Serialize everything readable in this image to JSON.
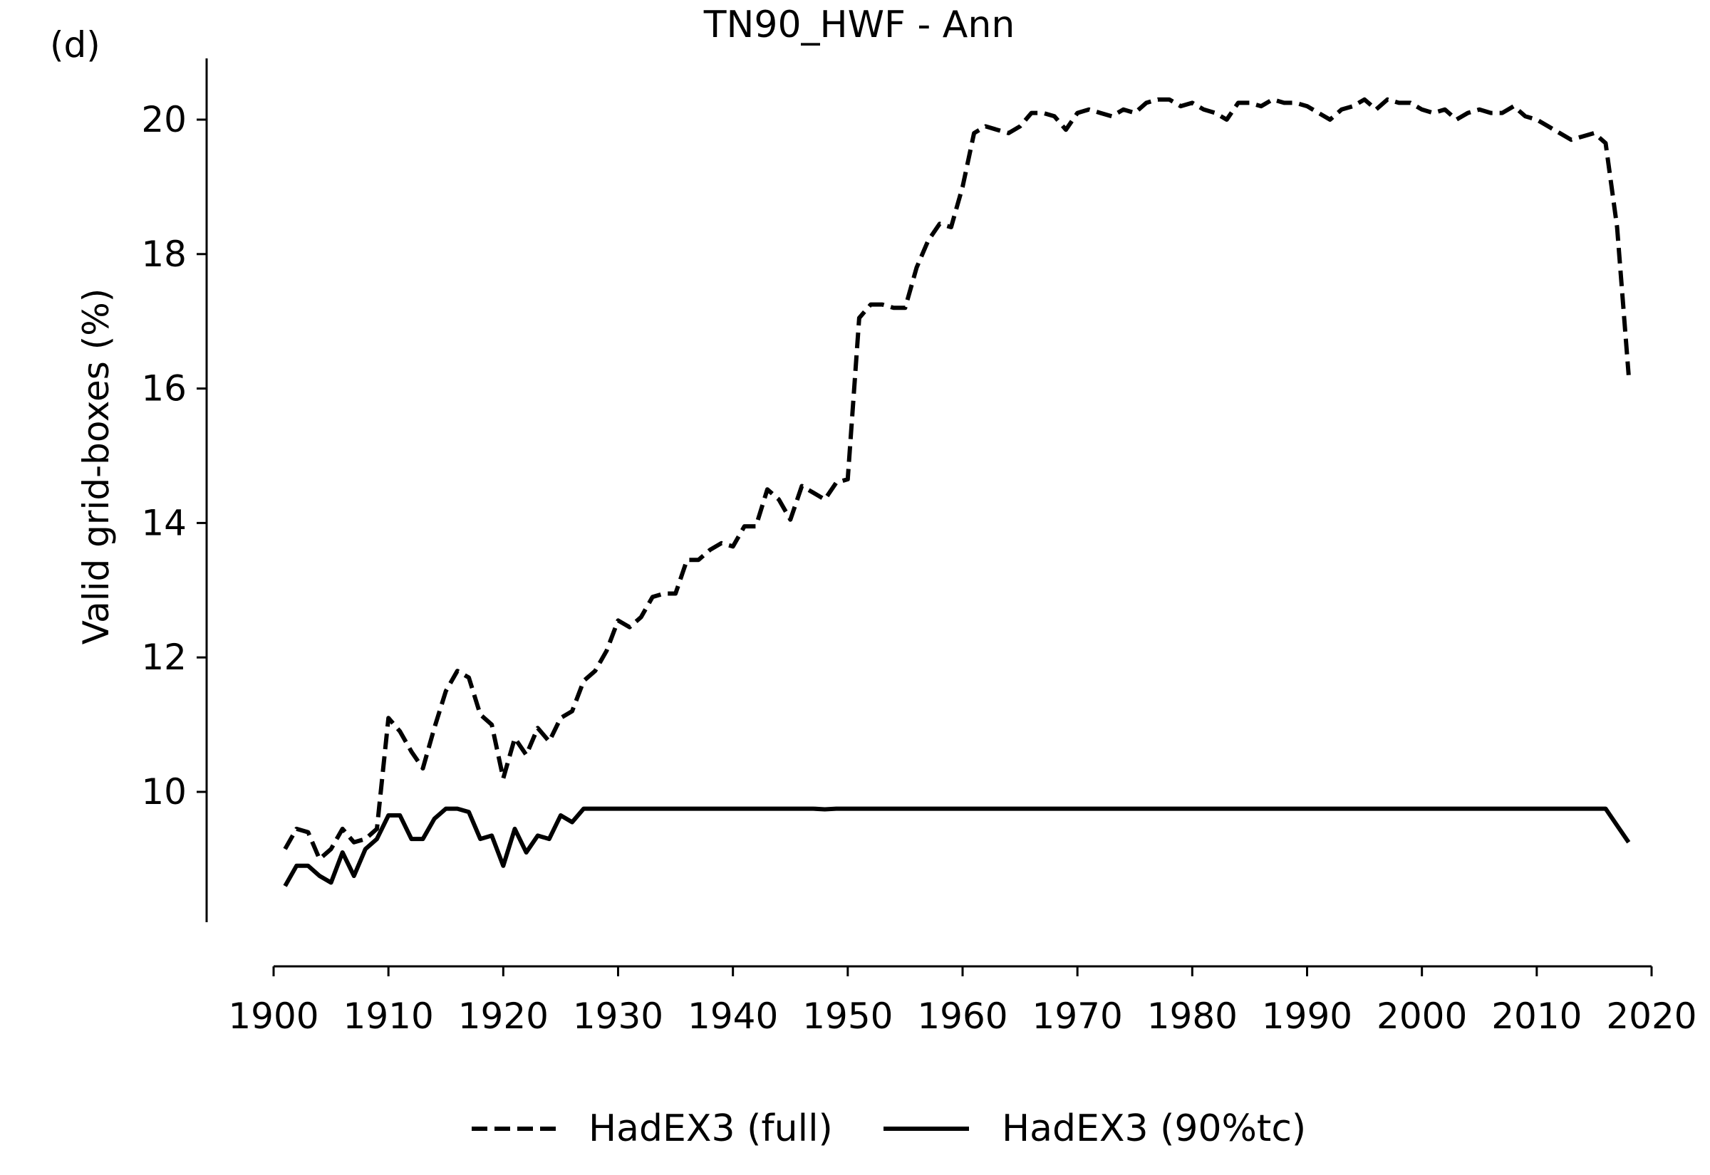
{
  "panel_label": "(d)",
  "chart_data": {
    "type": "line",
    "title": "TN90_HWF - Ann",
    "xlabel": "",
    "ylabel": "Valid grid-boxes (%)",
    "xlim": [
      1900,
      2020
    ],
    "ylim": [
      8.0,
      20.9
    ],
    "xticks": [
      1900,
      1910,
      1920,
      1930,
      1940,
      1950,
      1960,
      1970,
      1980,
      1990,
      2000,
      2010,
      2020
    ],
    "yticks": [
      10,
      12,
      14,
      16,
      18,
      20
    ],
    "grid": false,
    "legend_position": "bottom-center",
    "x": [
      1901,
      1902,
      1903,
      1904,
      1905,
      1906,
      1907,
      1908,
      1909,
      1910,
      1911,
      1912,
      1913,
      1914,
      1915,
      1916,
      1917,
      1918,
      1919,
      1920,
      1921,
      1922,
      1923,
      1924,
      1925,
      1926,
      1927,
      1928,
      1929,
      1930,
      1931,
      1932,
      1933,
      1934,
      1935,
      1936,
      1937,
      1938,
      1939,
      1940,
      1941,
      1942,
      1943,
      1944,
      1945,
      1946,
      1947,
      1948,
      1949,
      1950,
      1951,
      1952,
      1953,
      1954,
      1955,
      1956,
      1957,
      1958,
      1959,
      1960,
      1961,
      1962,
      1963,
      1964,
      1965,
      1966,
      1967,
      1968,
      1969,
      1970,
      1971,
      1972,
      1973,
      1974,
      1975,
      1976,
      1977,
      1978,
      1979,
      1980,
      1981,
      1982,
      1983,
      1984,
      1985,
      1986,
      1987,
      1988,
      1989,
      1990,
      1991,
      1992,
      1993,
      1994,
      1995,
      1996,
      1997,
      1998,
      1999,
      2000,
      2001,
      2002,
      2003,
      2004,
      2005,
      2006,
      2007,
      2008,
      2009,
      2010,
      2011,
      2012,
      2013,
      2014,
      2015,
      2016,
      2017,
      2018
    ],
    "series": [
      {
        "name": "HadEX3 (full)",
        "style": "dashed",
        "color": "#000000",
        "values": [
          9.15,
          9.45,
          9.4,
          9.0,
          9.15,
          9.45,
          9.25,
          9.3,
          9.45,
          11.1,
          10.9,
          10.6,
          10.35,
          10.95,
          11.5,
          11.8,
          11.7,
          11.15,
          11.0,
          10.2,
          10.8,
          10.55,
          10.95,
          10.75,
          11.1,
          11.2,
          11.65,
          11.8,
          12.1,
          12.55,
          12.45,
          12.6,
          12.9,
          12.95,
          12.95,
          13.45,
          13.45,
          13.6,
          13.7,
          13.65,
          13.95,
          13.95,
          14.5,
          14.35,
          14.05,
          14.55,
          14.45,
          14.35,
          14.6,
          14.65,
          17.05,
          17.25,
          17.25,
          17.2,
          17.2,
          17.8,
          18.2,
          18.45,
          18.4,
          19.0,
          19.8,
          19.9,
          19.85,
          19.8,
          19.9,
          20.1,
          20.1,
          20.05,
          19.85,
          20.1,
          20.15,
          20.1,
          20.05,
          20.15,
          20.1,
          20.25,
          20.3,
          20.3,
          20.2,
          20.25,
          20.15,
          20.1,
          20.0,
          20.25,
          20.25,
          20.2,
          20.3,
          20.25,
          20.25,
          20.2,
          20.1,
          20.0,
          20.15,
          20.2,
          20.3,
          20.15,
          20.3,
          20.25,
          20.25,
          20.15,
          20.1,
          20.15,
          20.0,
          20.1,
          20.15,
          20.1,
          20.1,
          20.2,
          20.05,
          20.0,
          19.9,
          19.8,
          19.7,
          19.75,
          19.8,
          19.65,
          18.4,
          16.2
        ]
      },
      {
        "name": "HadEX3 (90%tc)",
        "style": "solid",
        "color": "#000000",
        "values": [
          8.6,
          8.9,
          8.9,
          8.75,
          8.65,
          9.1,
          8.75,
          9.15,
          9.3,
          9.65,
          9.65,
          9.3,
          9.3,
          9.6,
          9.75,
          9.75,
          9.7,
          9.3,
          9.35,
          8.9,
          9.45,
          9.1,
          9.35,
          9.3,
          9.65,
          9.55,
          9.75,
          9.75,
          9.75,
          9.75,
          9.75,
          9.75,
          9.75,
          9.75,
          9.75,
          9.75,
          9.75,
          9.75,
          9.75,
          9.75,
          9.75,
          9.75,
          9.75,
          9.75,
          9.75,
          9.75,
          9.75,
          9.74,
          9.75,
          9.75,
          9.75,
          9.75,
          9.75,
          9.75,
          9.75,
          9.75,
          9.75,
          9.75,
          9.75,
          9.75,
          9.75,
          9.75,
          9.75,
          9.75,
          9.75,
          9.75,
          9.75,
          9.75,
          9.75,
          9.75,
          9.75,
          9.75,
          9.75,
          9.75,
          9.75,
          9.75,
          9.75,
          9.75,
          9.75,
          9.75,
          9.75,
          9.75,
          9.75,
          9.75,
          9.75,
          9.75,
          9.75,
          9.75,
          9.75,
          9.75,
          9.75,
          9.75,
          9.75,
          9.75,
          9.75,
          9.75,
          9.75,
          9.75,
          9.75,
          9.75,
          9.75,
          9.75,
          9.75,
          9.75,
          9.75,
          9.75,
          9.75,
          9.75,
          9.75,
          9.75,
          9.75,
          9.75,
          9.75,
          9.75,
          9.75,
          9.75,
          9.5,
          9.25
        ]
      }
    ]
  }
}
